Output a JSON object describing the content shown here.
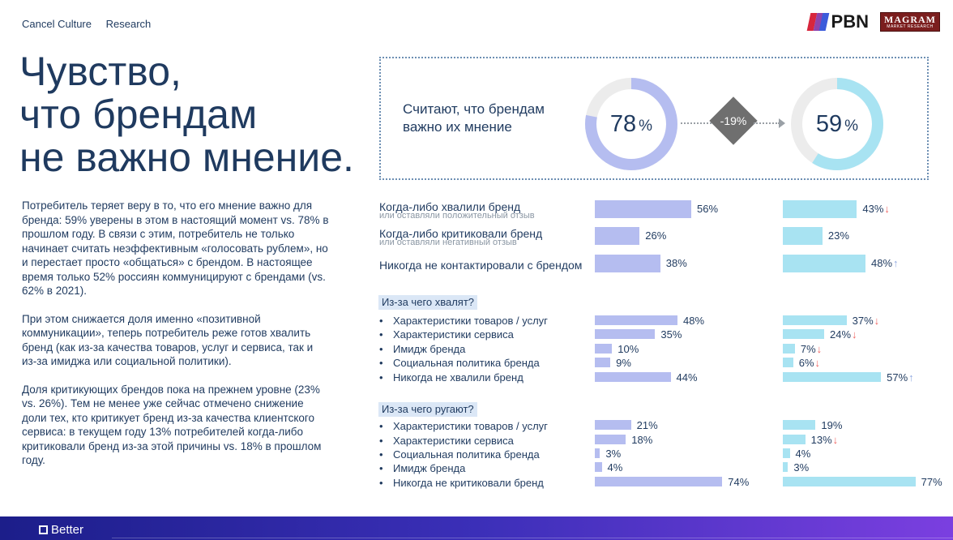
{
  "nav": {
    "items": [
      "Cancel Culture",
      "Research"
    ]
  },
  "logos": {
    "pbn": "PBN",
    "magram": "MAGRAM",
    "magram_sub": "MARKET RESEARCH"
  },
  "headline": [
    "Чувство,",
    "что брендам",
    "не важно мнение."
  ],
  "body": [
    "Потребитель теряет веру в то, что его мнение важно для бренда: 59% уверены в этом в настоящий момент vs. 78% в прошлом году. В связи с этим, потребитель не только начинает считать неэффективным «голосовать рублем», но и перестает просто «общаться» с брендом. В настоящее время только 52% россиян коммуницируют с брендами (vs. 62% в 2021).",
    "При этом снижается доля именно «позитивной коммуникации», теперь потребитель реже готов хвалить бренд (как из-за качества товаров, услуг и сервиса, так и из-за имиджа или социальной политики).",
    "Доля критикующих брендов пока на прежнем уровне (23% vs. 26%). Тем не менее уже сейчас отмечено снижение доли тех, кто критикует бренд из-за качества клиентского сервиса: в текущем году 13% потребителей когда-либо критиковали бренд из-за этой причины vs. 18% в прошлом году."
  ],
  "summary": {
    "label": "Считают, что брендам важно их мнение",
    "prev": {
      "value": 78,
      "unit": "%"
    },
    "curr": {
      "value": 59,
      "unit": "%"
    },
    "change": "-19%"
  },
  "colors": {
    "prev": "#b5bdf0",
    "curr": "#a8e3f2",
    "track": "#ececec",
    "down": "#ef6461",
    "up": "#8fa8e0"
  },
  "chart_data": {
    "type": "bar",
    "series_colors": [
      "#b5bdf0",
      "#a8e3f2"
    ],
    "scale_max": 80,
    "main": [
      {
        "label": "Когда-либо хвалили бренд",
        "sub": "или оставляли положительный отзыв",
        "prev": 56,
        "curr": 43,
        "trend": "down"
      },
      {
        "label": "Когда-либо критиковали бренд",
        "sub": "или оставляли негативный отзыв",
        "prev": 26,
        "curr": 23,
        "trend": ""
      },
      {
        "label": "Никогда не контактировали с брендом",
        "sub": "",
        "prev": 38,
        "curr": 48,
        "trend": "up"
      }
    ],
    "praise": {
      "title": "Из-за чего хвалят?",
      "items": [
        {
          "label": "Характеристики товаров / услуг",
          "prev": 48,
          "curr": 37,
          "trend": "down"
        },
        {
          "label": "Характеристики сервиса",
          "prev": 35,
          "curr": 24,
          "trend": "down"
        },
        {
          "label": "Имидж бренда",
          "prev": 10,
          "curr": 7,
          "trend": "down"
        },
        {
          "label": "Социальная политика бренда",
          "prev": 9,
          "curr": 6,
          "trend": "down"
        },
        {
          "label": "Никогда не хвалили бренд",
          "prev": 44,
          "curr": 57,
          "trend": "up"
        }
      ]
    },
    "criticize": {
      "title": "Из-за чего ругают?",
      "items": [
        {
          "label": "Характеристики товаров / услуг",
          "prev": 21,
          "curr": 19,
          "trend": ""
        },
        {
          "label": "Характеристики сервиса",
          "prev": 18,
          "curr": 13,
          "trend": "down"
        },
        {
          "label": "Социальная политика бренда",
          "prev": 3,
          "curr": 4,
          "trend": ""
        },
        {
          "label": "Имидж бренда",
          "prev": 4,
          "curr": 3,
          "trend": ""
        },
        {
          "label": "Никогда не критиковали бренд",
          "prev": 74,
          "curr": 77,
          "trend": ""
        }
      ]
    }
  },
  "footer": {
    "logo": "Better"
  }
}
